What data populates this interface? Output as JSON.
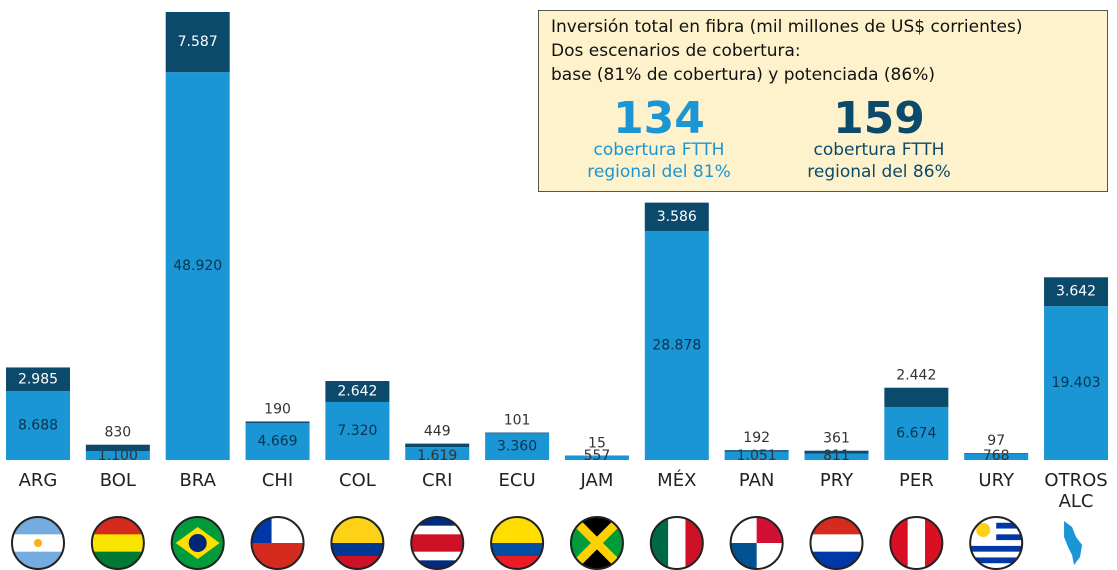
{
  "chart_data": {
    "type": "stacked_bar",
    "categories": [
      "ARG",
      "BOL",
      "BRA",
      "CHI",
      "COL",
      "CRI",
      "ECU",
      "JAM",
      "MÉX",
      "PAN",
      "PRY",
      "PER",
      "URY",
      "OTROS ALC"
    ],
    "series": [
      {
        "color": "#1a96d4",
        "values": [
          8688,
          1100,
          48920,
          4669,
          7320,
          1619,
          3360,
          557,
          28878,
          1051,
          811,
          6674,
          768,
          19403
        ],
        "value_labels": [
          "8.688",
          "1.100",
          "48.920",
          "4.669",
          "7.320",
          "1.619",
          "3.360",
          "557",
          "28.878",
          "1.051",
          "811",
          "6.674",
          "768",
          "19.403"
        ]
      },
      {
        "color": "#0b4a6b",
        "values": [
          2985,
          830,
          7587,
          190,
          2642,
          449,
          101,
          15,
          3586,
          192,
          361,
          2442,
          97,
          3642
        ],
        "value_labels": [
          "2.985",
          "830",
          "7.587",
          "190",
          "2.642",
          "449",
          "101",
          "15",
          "3.586",
          "192",
          "361",
          "2.442",
          "97",
          "3.642"
        ]
      }
    ],
    "annotations": {
      "lines": [
        "Inversión total en fibra (mil millones de US$ corrientes)",
        "Dos escenarios de cobertura:",
        "base (81% de cobertura) y potenciada (86%)"
      ],
      "scenarios": [
        {
          "value": 134,
          "text": "cobertura FTTH regional del 81%",
          "color": "#1a96d4"
        },
        {
          "value": 159,
          "text": "cobertura FTTH regional del 86%",
          "color": "#0b4a6b"
        }
      ]
    }
  }
}
